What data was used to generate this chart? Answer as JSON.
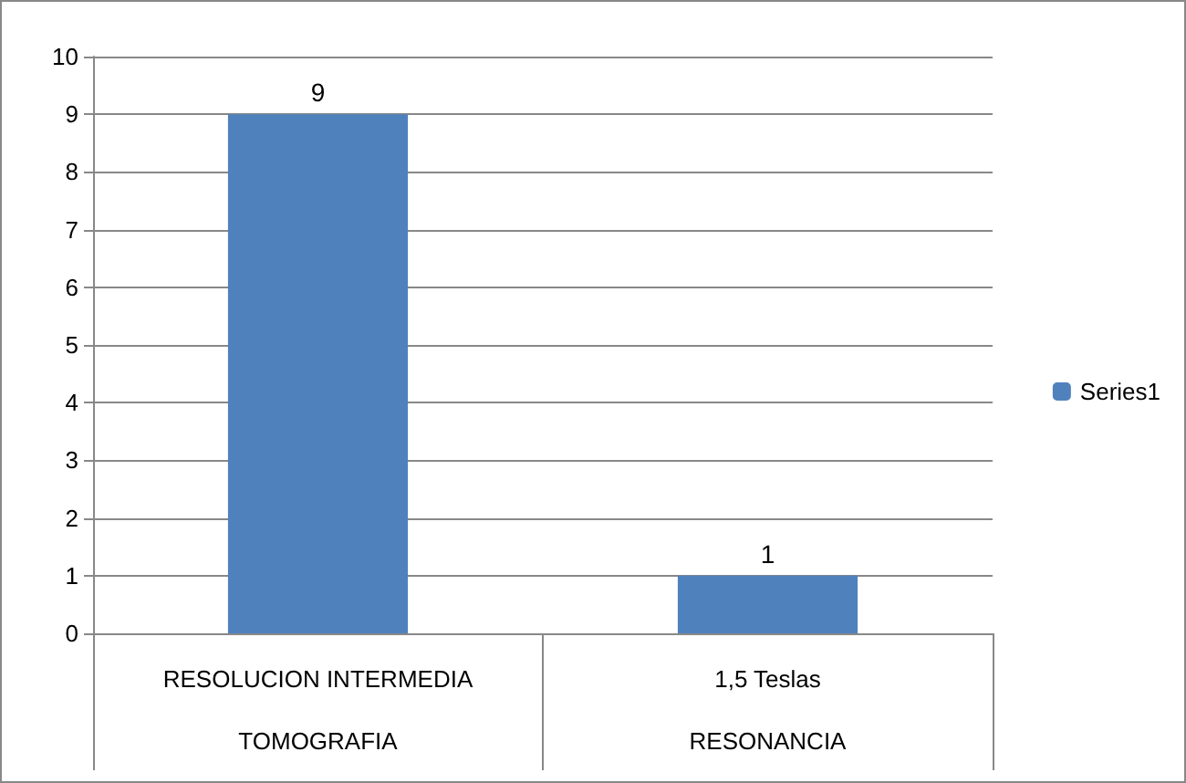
{
  "chart_data": {
    "type": "bar",
    "categories": [
      "RESOLUCION INTERMEDIA\nTOMOGRAFIA",
      "1,5 Teslas\nRESONANCIA"
    ],
    "series": [
      {
        "name": "Series1",
        "color": "#4f81bd",
        "values": [
          9,
          1
        ]
      }
    ],
    "ylim": [
      0,
      10
    ],
    "yticks": [
      0,
      1,
      2,
      3,
      4,
      5,
      6,
      7,
      8,
      9,
      10
    ],
    "grid": "y",
    "legend": "right",
    "data_labels": true
  }
}
